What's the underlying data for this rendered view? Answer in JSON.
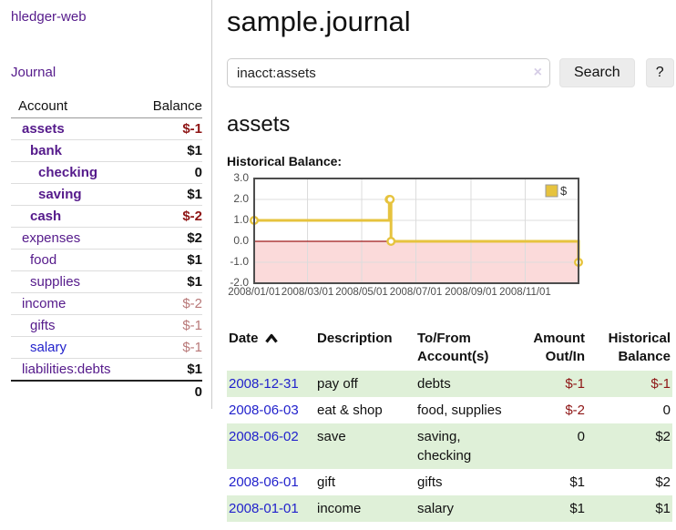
{
  "app": {
    "brand": "hledger-web",
    "nav_journal": "Journal"
  },
  "sidebar": {
    "header": {
      "account": "Account",
      "balance": "Balance"
    },
    "accounts": [
      {
        "name": "assets",
        "balance": "$-1",
        "level": 0,
        "bold": true,
        "negative": "strong"
      },
      {
        "name": "bank",
        "balance": "$1",
        "level": 1,
        "bold": true,
        "negative": "none"
      },
      {
        "name": "checking",
        "balance": "0",
        "level": 2,
        "bold": true,
        "negative": "none"
      },
      {
        "name": "saving",
        "balance": "$1",
        "level": 2,
        "bold": true,
        "negative": "none"
      },
      {
        "name": "cash",
        "balance": "$-2",
        "level": 1,
        "bold": true,
        "negative": "strong"
      },
      {
        "name": "expenses",
        "balance": "$2",
        "level": 0,
        "bold": false,
        "negative": "none"
      },
      {
        "name": "food",
        "balance": "$1",
        "level": 1,
        "bold": false,
        "negative": "none"
      },
      {
        "name": "supplies",
        "balance": "$1",
        "level": 1,
        "bold": false,
        "negative": "none"
      },
      {
        "name": "income",
        "balance": "$-2",
        "level": 0,
        "bold": false,
        "negative": "muted"
      },
      {
        "name": "gifts",
        "balance": "$-1",
        "level": 1,
        "bold": false,
        "negative": "muted"
      },
      {
        "name": "salary",
        "balance": "$-1",
        "level": 1,
        "bold": false,
        "negative": "muted",
        "link_style": "blue"
      },
      {
        "name": "liabilities:debts",
        "balance": "$1",
        "level": 0,
        "bold": false,
        "negative": "none"
      }
    ],
    "total": "0"
  },
  "header": {
    "title": "sample.journal"
  },
  "search": {
    "value": "inacct:assets",
    "clear_icon": "×",
    "button": "Search",
    "help_button": "?"
  },
  "account_page": {
    "title": "assets",
    "chart_label": "Historical Balance:"
  },
  "chart_data": {
    "type": "line",
    "style": "step",
    "title": "Historical Balance:",
    "series": [
      {
        "name": "$",
        "points": [
          [
            "2008-01-01",
            1
          ],
          [
            "2008-06-01",
            2
          ],
          [
            "2008-06-02",
            2
          ],
          [
            "2008-06-03",
            0
          ],
          [
            "2008-12-31",
            -1
          ]
        ]
      }
    ],
    "xlim": [
      "2008-01-01",
      "2008-12-31"
    ],
    "ylim": [
      -2,
      3
    ],
    "y_ticks": [
      3.0,
      2.0,
      1.0,
      0.0,
      -1.0,
      -2.0
    ],
    "x_ticks": [
      "2008/01/01",
      "2008/03/01",
      "2008/05/01",
      "2008/07/01",
      "2008/09/01",
      "2008/11/01"
    ],
    "legend_position": "top-right",
    "grid": true,
    "colors": {
      "line": "#e6c33e",
      "marker_fill": "#ffffff",
      "negative_region": "#fbdada",
      "zero_line": "#9e1a1a",
      "grid": "#dcdcdc",
      "border": "#4d4d4d"
    }
  },
  "register": {
    "columns": {
      "date": "Date",
      "description": "Description",
      "accounts": "To/From Account(s)",
      "amount": "Amount Out/In",
      "balance": "Historical Balance"
    },
    "sort": {
      "column": "date",
      "direction": "ascending"
    },
    "rows": [
      {
        "date": "2008-12-31",
        "description": "pay off",
        "accounts": "debts",
        "amount": "$-1",
        "balance": "$-1",
        "amount_negative": true,
        "balance_negative": true
      },
      {
        "date": "2008-06-03",
        "description": "eat & shop",
        "accounts": "food, supplies",
        "amount": "$-2",
        "balance": "0",
        "amount_negative": true,
        "balance_negative": false
      },
      {
        "date": "2008-06-02",
        "description": "save",
        "accounts": "saving, checking",
        "amount": "0",
        "balance": "$2",
        "amount_negative": false,
        "balance_negative": false
      },
      {
        "date": "2008-06-01",
        "description": "gift",
        "accounts": "gifts",
        "amount": "$1",
        "balance": "$2",
        "amount_negative": false,
        "balance_negative": false
      },
      {
        "date": "2008-01-01",
        "description": "income",
        "accounts": "salary",
        "amount": "$1",
        "balance": "$1",
        "amount_negative": false,
        "balance_negative": false
      }
    ]
  }
}
